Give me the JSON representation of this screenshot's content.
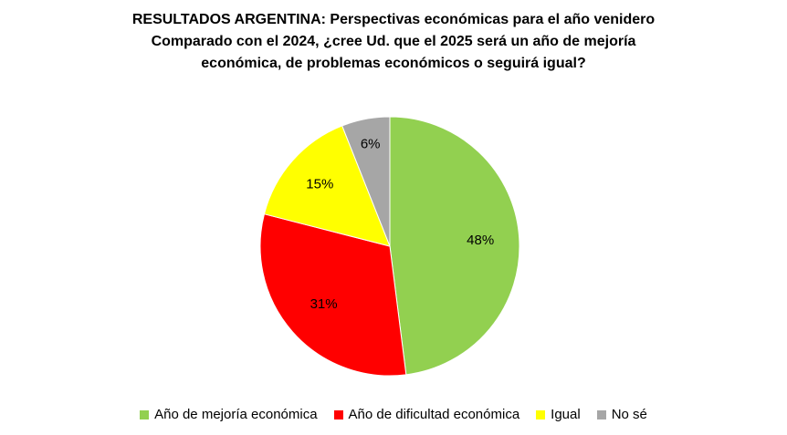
{
  "chart_data": {
    "type": "pie",
    "title_lines": [
      "RESULTADOS ARGENTINA: Perspectivas económicas para  el año venidero",
      "Comparado  con el 2024, ¿cree Ud. que el 2025 será un año de mejoría",
      "económica, de problemas económicos o seguirá igual?"
    ],
    "slices": [
      {
        "name": "Año de mejoría económica",
        "value": 48,
        "label": "48%",
        "color": "#92d050"
      },
      {
        "name": "Año de dificultad económica",
        "value": 31,
        "label": "31%",
        "color": "#ff0000"
      },
      {
        "name": "Igual",
        "value": 15,
        "label": "15%",
        "color": "#ffff00"
      },
      {
        "name": "No sé",
        "value": 6,
        "label": "6%",
        "color": "#a6a6a6"
      }
    ],
    "legend_position": "bottom",
    "start_angle": "top",
    "direction": "clockwise"
  }
}
